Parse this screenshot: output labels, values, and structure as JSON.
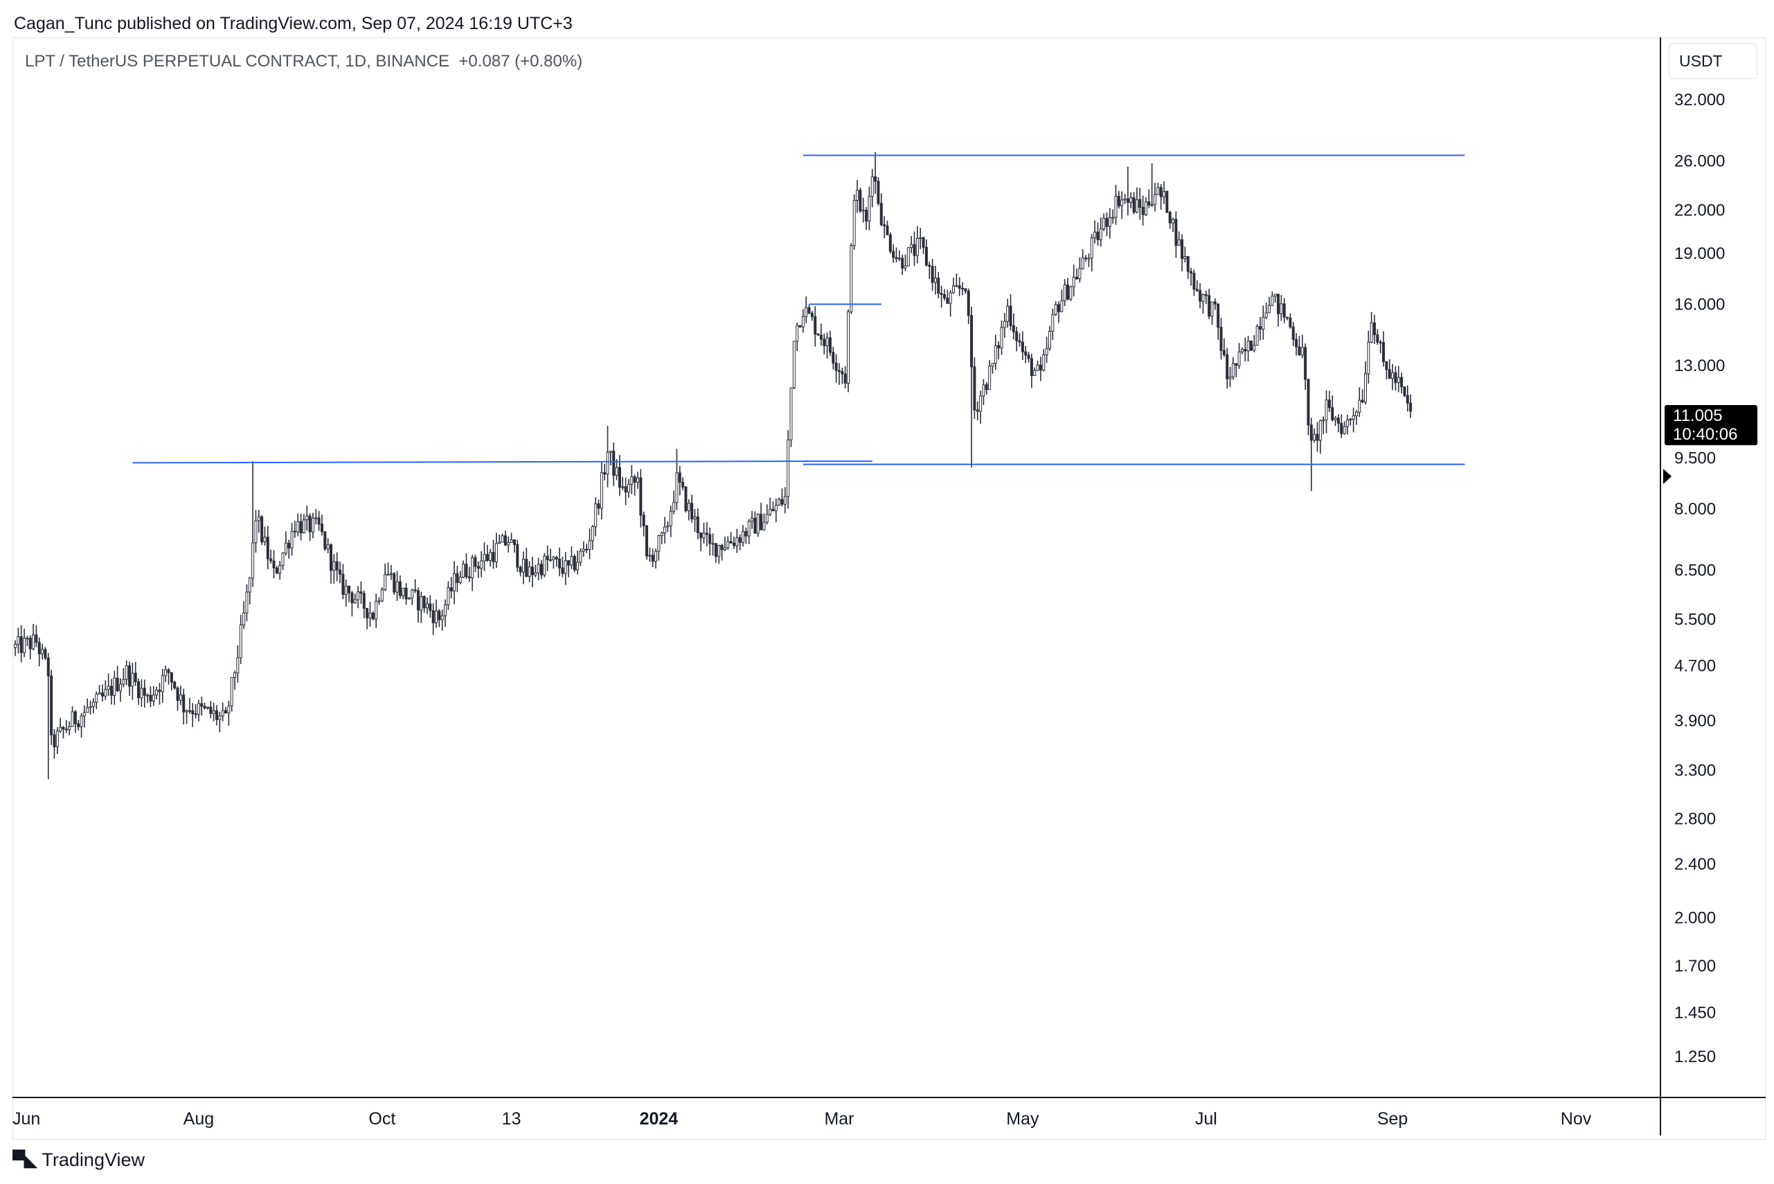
{
  "header": {
    "published_text": "Cagan_Tunc published on TradingView.com, Sep 07, 2024 16:19 UTC+3"
  },
  "legend": {
    "symbol_text": "LPT / TetherUS PERPETUAL CONTRACT, 1D, BINANCE",
    "change_text": "+0.087 (+0.80%)"
  },
  "price_scale": {
    "currency": "USDT",
    "current_price": "11.005",
    "countdown": "10:40:06"
  },
  "footer": {
    "brand": "TradingView"
  },
  "colors": {
    "candle": "#2a2e39",
    "trendline": "#2962ff",
    "axis": "#131722",
    "price_tag_bg": "#000000"
  },
  "chart_data": {
    "type": "candlestick",
    "scale": "log",
    "y_ticks": [
      32,
      26,
      22,
      19,
      16,
      13,
      9.5,
      8,
      6.5,
      5.5,
      4.7,
      3.9,
      3.3,
      2.8,
      2.4,
      2.0,
      1.7,
      1.45,
      1.25
    ],
    "y_tick_labels": [
      "32.000",
      "26.000",
      "22.000",
      "19.000",
      "16.000",
      "13.000",
      "9.500",
      "8.000",
      "6.500",
      "5.500",
      "4.700",
      "3.900",
      "3.300",
      "2.800",
      "2.400",
      "2.000",
      "1.700",
      "1.450",
      "1.250"
    ],
    "x_ticks": [
      {
        "label": "Jun",
        "bold": false,
        "date": "2023-06-01"
      },
      {
        "label": "Aug",
        "bold": false,
        "date": "2023-08-01"
      },
      {
        "label": "Oct",
        "bold": false,
        "date": "2023-10-01"
      },
      {
        "label": "13",
        "bold": false,
        "date": "2023-11-13"
      },
      {
        "label": "2024",
        "bold": true,
        "date": "2024-01-01"
      },
      {
        "label": "Mar",
        "bold": false,
        "date": "2024-03-01"
      },
      {
        "label": "May",
        "bold": false,
        "date": "2024-05-01"
      },
      {
        "label": "Jul",
        "bold": false,
        "date": "2024-07-01"
      },
      {
        "label": "Sep",
        "bold": false,
        "date": "2024-09-01"
      },
      {
        "label": "Nov",
        "bold": false,
        "date": "2024-11-01"
      }
    ],
    "close_path": [
      [
        "2023-06-01",
        5.0
      ],
      [
        "2023-06-08",
        5.1
      ],
      [
        "2023-06-12",
        4.6
      ],
      [
        "2023-06-13",
        3.6
      ],
      [
        "2023-06-20",
        3.9
      ],
      [
        "2023-06-30",
        4.2
      ],
      [
        "2023-07-08",
        4.6
      ],
      [
        "2023-07-15",
        4.2
      ],
      [
        "2023-07-22",
        4.6
      ],
      [
        "2023-07-27",
        4.1
      ],
      [
        "2023-08-05",
        4.0
      ],
      [
        "2023-08-10",
        3.9
      ],
      [
        "2023-08-14",
        4.9
      ],
      [
        "2023-08-18",
        6.3
      ],
      [
        "2023-08-20",
        7.8
      ],
      [
        "2023-08-26",
        6.4
      ],
      [
        "2023-09-02",
        7.6
      ],
      [
        "2023-09-10",
        7.5
      ],
      [
        "2023-09-17",
        6.2
      ],
      [
        "2023-09-28",
        5.6
      ],
      [
        "2023-10-02",
        6.5
      ],
      [
        "2023-10-08",
        6.0
      ],
      [
        "2023-10-15",
        5.8
      ],
      [
        "2023-10-20",
        5.5
      ],
      [
        "2023-10-26",
        6.4
      ],
      [
        "2023-11-05",
        6.8
      ],
      [
        "2023-11-12",
        7.2
      ],
      [
        "2023-11-18",
        6.4
      ],
      [
        "2023-11-25",
        6.7
      ],
      [
        "2023-12-02",
        6.5
      ],
      [
        "2023-12-08",
        7.0
      ],
      [
        "2023-12-12",
        8.3
      ],
      [
        "2023-12-15",
        9.7
      ],
      [
        "2023-12-20",
        8.5
      ],
      [
        "2023-12-25",
        8.8
      ],
      [
        "2023-12-28",
        6.7
      ],
      [
        "2024-01-03",
        7.3
      ],
      [
        "2024-01-07",
        8.8
      ],
      [
        "2024-01-12",
        7.8
      ],
      [
        "2024-01-18",
        7.0
      ],
      [
        "2024-01-26",
        7.2
      ],
      [
        "2024-02-06",
        7.8
      ],
      [
        "2024-02-12",
        8.3
      ],
      [
        "2024-02-15",
        14.5
      ],
      [
        "2024-02-18",
        15.8
      ],
      [
        "2024-02-25",
        14.2
      ],
      [
        "2024-03-03",
        12.5
      ],
      [
        "2024-03-06",
        23.5
      ],
      [
        "2024-03-10",
        21.0
      ],
      [
        "2024-03-12",
        25.5
      ],
      [
        "2024-03-16",
        20.5
      ],
      [
        "2024-03-21",
        18.5
      ],
      [
        "2024-03-28",
        19.5
      ],
      [
        "2024-04-05",
        16.0
      ],
      [
        "2024-04-12",
        17.2
      ],
      [
        "2024-04-15",
        11.2
      ],
      [
        "2024-04-21",
        13.0
      ],
      [
        "2024-04-26",
        15.8
      ],
      [
        "2024-05-02",
        13.2
      ],
      [
        "2024-05-07",
        12.5
      ],
      [
        "2024-05-12",
        15.8
      ],
      [
        "2024-05-20",
        18.0
      ],
      [
        "2024-05-28",
        21.0
      ],
      [
        "2024-06-02",
        23.0
      ],
      [
        "2024-06-10",
        22.0
      ],
      [
        "2024-06-14",
        23.5
      ],
      [
        "2024-06-18",
        22.5
      ],
      [
        "2024-06-22",
        19.5
      ],
      [
        "2024-06-28",
        16.8
      ],
      [
        "2024-07-04",
        15.5
      ],
      [
        "2024-07-08",
        12.5
      ],
      [
        "2024-07-16",
        14.0
      ],
      [
        "2024-07-22",
        16.5
      ],
      [
        "2024-07-28",
        15.2
      ],
      [
        "2024-08-02",
        13.5
      ],
      [
        "2024-08-05",
        9.8
      ],
      [
        "2024-08-10",
        11.2
      ],
      [
        "2024-08-16",
        10.5
      ],
      [
        "2024-08-22",
        11.8
      ],
      [
        "2024-08-25",
        15.5
      ],
      [
        "2024-08-29",
        13.0
      ],
      [
        "2024-09-03",
        12.2
      ],
      [
        "2024-09-07",
        11.0
      ]
    ],
    "extreme_wicks": [
      {
        "date": "2023-06-12",
        "low": 3.2
      },
      {
        "date": "2023-08-19",
        "high": 9.4
      },
      {
        "date": "2023-12-15",
        "high": 10.6
      },
      {
        "date": "2024-01-07",
        "high": 9.8
      },
      {
        "date": "2024-03-13",
        "high": 26.8
      },
      {
        "date": "2024-04-14",
        "low": 9.2
      },
      {
        "date": "2024-06-05",
        "high": 25.5
      },
      {
        "date": "2024-06-13",
        "high": 25.8
      },
      {
        "date": "2024-08-05",
        "low": 8.5
      }
    ],
    "trendlines": [
      {
        "name": "resistance",
        "from": [
          "2024-02-18",
          26.5
        ],
        "to": [
          "2024-09-25",
          26.5
        ]
      },
      {
        "name": "support-upper-range",
        "from": [
          "2024-02-18",
          9.3
        ],
        "to": [
          "2024-09-25",
          9.3
        ]
      },
      {
        "name": "support-old",
        "from": [
          "2023-07-10",
          9.35
        ],
        "to": [
          "2024-02-20",
          9.4
        ]
      },
      {
        "name": "mid-level",
        "from": [
          "2024-02-20",
          16.0
        ],
        "to": [
          "2024-03-15",
          16.0
        ]
      },
      {
        "name": "retest-short",
        "from": [
          "2024-02-18",
          9.4
        ],
        "to": [
          "2024-03-12",
          9.4
        ]
      }
    ]
  }
}
